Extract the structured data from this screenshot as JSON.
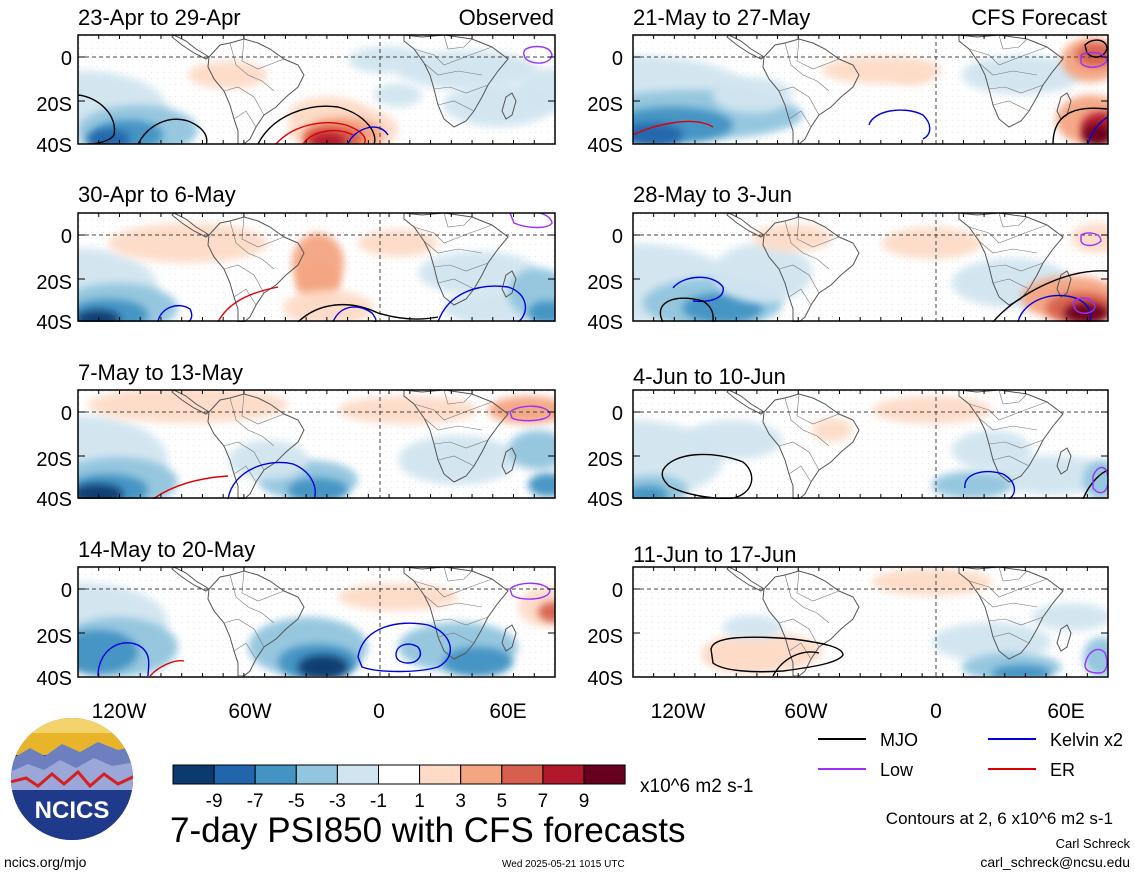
{
  "panels": [
    {
      "title": "23-Apr to 29-Apr",
      "tag": "Observed"
    },
    {
      "title": "30-Apr to 6-May",
      "tag": ""
    },
    {
      "title": "7-May to 13-May",
      "tag": ""
    },
    {
      "title": "14-May to 20-May",
      "tag": ""
    },
    {
      "title": "21-May to 27-May",
      "tag": "CFS Forecast"
    },
    {
      "title": "28-May to 3-Jun",
      "tag": ""
    },
    {
      "title": "4-Jun to 10-Jun",
      "tag": ""
    },
    {
      "title": "11-Jun to 17-Jun",
      "tag": ""
    }
  ],
  "lat_labels": [
    "0",
    "20S",
    "40S"
  ],
  "lon_labels": [
    "120W",
    "60W",
    "0",
    "60E"
  ],
  "colorbar": {
    "colors": [
      "#0b3a6e",
      "#2166ac",
      "#4393c3",
      "#92c5de",
      "#d1e5f0",
      "#ffffff",
      "#fddbc7",
      "#f4a582",
      "#d6604d",
      "#b2182b",
      "#67001f"
    ],
    "labels": [
      "-9",
      "-7",
      "-5",
      "-3",
      "-1",
      "1",
      "3",
      "5",
      "7",
      "9"
    ],
    "units": "x10^6 m2 s-1"
  },
  "legend": [
    {
      "label": "MJO",
      "color": "#000000"
    },
    {
      "label": "Kelvin x2",
      "color": "#0000dd"
    },
    {
      "label": "Low",
      "color": "#9b30ff"
    },
    {
      "label": "ER",
      "color": "#dd0000"
    }
  ],
  "logo_text": "NCICS",
  "main_title": "7-day PSI850 with CFS forecasts",
  "contours_note": "Contours at 2, 6 x10^6 m2 s-1",
  "author": "Carl Schreck",
  "email": "carl_schreck@ncsu.edu",
  "url": "ncics.org/mjo",
  "timestamp": "Wed 2025-05-21 1015 UTC"
}
